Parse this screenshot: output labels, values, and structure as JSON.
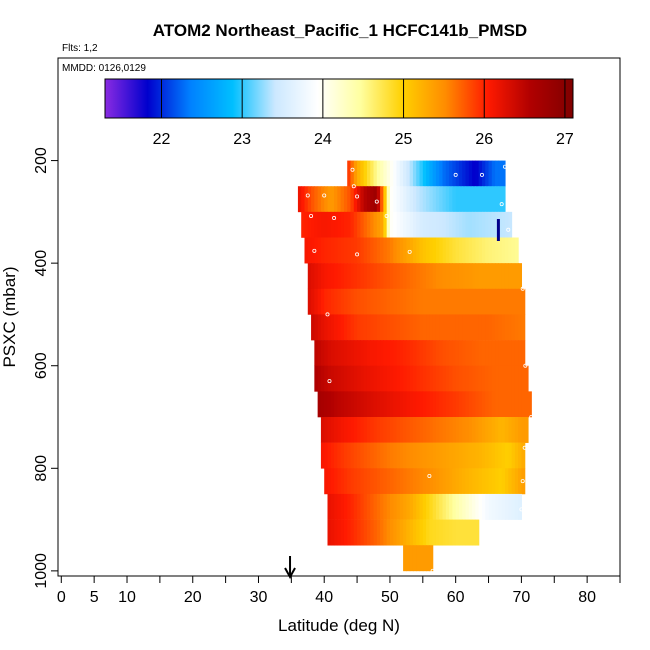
{
  "chart_data": {
    "type": "heatmap",
    "title": "ATOM2 Northeast_Pacific_1 HCFC141b_PMSD",
    "flights_note": "Flts: 1,2",
    "date_note": "MMDD: 0126,0129",
    "xlabel": "Latitude (deg N)",
    "ylabel": "PSXC (mbar)",
    "xlim": [
      -0.5,
      85
    ],
    "ylim": [
      1010,
      0
    ],
    "x_ticks": [
      0,
      5,
      10,
      20,
      30,
      40,
      50,
      60,
      70,
      80
    ],
    "x_tick_labels": [
      "0",
      "5",
      "10",
      "20",
      "30",
      "40",
      "50",
      "60",
      "70",
      "80"
    ],
    "x_minor_ticks": [
      15,
      25,
      35,
      45,
      55,
      65,
      75,
      85
    ],
    "y_ticks": [
      200,
      400,
      600,
      800,
      1000
    ],
    "y_tick_labels": [
      "200",
      "400",
      "600",
      "800",
      "1000"
    ],
    "colorbar": {
      "range": [
        21.3,
        27.1
      ],
      "ticks": [
        22,
        23,
        24,
        25,
        26,
        27
      ],
      "tick_labels": [
        "22",
        "23",
        "24",
        "25",
        "26",
        "27"
      ],
      "colors": [
        "#8a2be2",
        "#0000cd",
        "#0080ff",
        "#00bfff",
        "#cce8ff",
        "#ffffff",
        "#ffffa0",
        "#ffd000",
        "#ff8c00",
        "#ff1a00",
        "#b00000",
        "#800000"
      ]
    },
    "markers": [
      {
        "type": "arrow-down",
        "x": 34.8,
        "color": "#000000"
      },
      {
        "type": "bar-top",
        "x": 66.5,
        "color": "#00008b"
      }
    ],
    "rows": [
      {
        "p_top": 200,
        "p_bot": 250,
        "x_start": 43.5,
        "x_end": 67.5,
        "segments": [
          [
            43.5,
            26.0
          ],
          [
            45,
            25.3
          ],
          [
            48,
            24.5
          ],
          [
            52,
            23.6
          ],
          [
            58,
            22.3
          ],
          [
            63,
            21.8
          ],
          [
            66,
            22.3
          ],
          [
            67.5,
            22.3
          ]
        ]
      },
      {
        "p_top": 250,
        "p_bot": 300,
        "x_start": 36,
        "x_end": 67.5,
        "segments": [
          [
            36,
            26.2
          ],
          [
            38,
            25.8
          ],
          [
            41,
            25.4
          ],
          [
            44,
            25.8
          ],
          [
            46,
            26.5
          ],
          [
            48,
            26.8
          ],
          [
            50,
            24.0
          ],
          [
            54,
            23.4
          ],
          [
            60,
            23.0
          ],
          [
            67.5,
            23.0
          ]
        ]
      },
      {
        "p_top": 300,
        "p_bot": 350,
        "x_start": 36.5,
        "x_end": 68.5,
        "segments": [
          [
            36.5,
            26.0
          ],
          [
            40,
            26.1
          ],
          [
            44,
            26.0
          ],
          [
            47,
            25.6
          ],
          [
            49,
            25.3
          ],
          [
            50,
            24.0
          ],
          [
            55,
            23.5
          ],
          [
            62,
            23.3
          ],
          [
            68.5,
            23.4
          ]
        ]
      },
      {
        "p_top": 350,
        "p_bot": 400,
        "x_start": 37,
        "x_end": 69.5,
        "segments": [
          [
            37,
            26.1
          ],
          [
            40,
            26.0
          ],
          [
            45,
            25.9
          ],
          [
            50,
            25.6
          ],
          [
            55,
            25.1
          ],
          [
            60,
            24.8
          ],
          [
            65,
            24.6
          ],
          [
            69.5,
            24.5
          ]
        ]
      },
      {
        "p_top": 400,
        "p_bot": 450,
        "x_start": 37.5,
        "x_end": 70,
        "segments": [
          [
            37.5,
            26.3
          ],
          [
            40,
            26.1
          ],
          [
            46,
            25.9
          ],
          [
            52,
            25.7
          ],
          [
            58,
            25.5
          ],
          [
            64,
            25.4
          ],
          [
            70,
            25.4
          ]
        ]
      },
      {
        "p_top": 450,
        "p_bot": 500,
        "x_start": 37.5,
        "x_end": 70.5,
        "segments": [
          [
            37.5,
            26.3
          ],
          [
            40,
            26.0
          ],
          [
            45,
            25.8
          ],
          [
            55,
            25.6
          ],
          [
            65,
            25.6
          ],
          [
            70.5,
            25.6
          ]
        ]
      },
      {
        "p_top": 500,
        "p_bot": 550,
        "x_start": 38,
        "x_end": 70.5,
        "segments": [
          [
            38,
            26.4
          ],
          [
            40,
            26.2
          ],
          [
            45,
            25.9
          ],
          [
            55,
            25.7
          ],
          [
            65,
            25.7
          ],
          [
            70.5,
            25.6
          ]
        ]
      },
      {
        "p_top": 550,
        "p_bot": 600,
        "x_start": 38.5,
        "x_end": 70.5,
        "segments": [
          [
            38.5,
            26.5
          ],
          [
            41,
            26.3
          ],
          [
            47,
            26.1
          ],
          [
            52,
            26.0
          ],
          [
            58,
            25.8
          ],
          [
            64,
            25.7
          ],
          [
            70.5,
            25.7
          ]
        ]
      },
      {
        "p_top": 600,
        "p_bot": 650,
        "x_start": 38.5,
        "x_end": 71,
        "segments": [
          [
            38.5,
            26.6
          ],
          [
            41,
            26.4
          ],
          [
            46,
            26.2
          ],
          [
            53,
            26.0
          ],
          [
            60,
            25.8
          ],
          [
            66,
            25.7
          ],
          [
            71,
            25.7
          ]
        ]
      },
      {
        "p_top": 650,
        "p_bot": 700,
        "x_start": 39,
        "x_end": 71.5,
        "segments": [
          [
            39,
            26.7
          ],
          [
            42,
            26.5
          ],
          [
            47,
            26.3
          ],
          [
            53,
            26.1
          ],
          [
            60,
            25.9
          ],
          [
            66,
            25.7
          ],
          [
            71.5,
            25.7
          ]
        ]
      },
      {
        "p_top": 700,
        "p_bot": 750,
        "x_start": 39.5,
        "x_end": 71,
        "segments": [
          [
            39.5,
            26.3
          ],
          [
            43,
            26.1
          ],
          [
            48,
            25.9
          ],
          [
            55,
            25.7
          ],
          [
            62,
            25.5
          ],
          [
            67,
            25.2
          ],
          [
            70,
            25.4
          ],
          [
            71,
            25.4
          ]
        ]
      },
      {
        "p_top": 750,
        "p_bot": 800,
        "x_start": 39.5,
        "x_end": 70.5,
        "segments": [
          [
            39.5,
            26.1
          ],
          [
            43,
            25.9
          ],
          [
            50,
            25.6
          ],
          [
            57,
            25.4
          ],
          [
            64,
            25.2
          ],
          [
            68,
            25.0
          ],
          [
            70.5,
            25.3
          ]
        ]
      },
      {
        "p_top": 800,
        "p_bot": 850,
        "x_start": 40,
        "x_end": 70.5,
        "segments": [
          [
            40,
            26.1
          ],
          [
            44,
            25.9
          ],
          [
            50,
            25.7
          ],
          [
            56,
            25.5
          ],
          [
            62,
            25.2
          ],
          [
            67,
            25.0
          ],
          [
            70.5,
            25.4
          ]
        ]
      },
      {
        "p_top": 850,
        "p_bot": 900,
        "x_start": 40.5,
        "x_end": 70,
        "segments": [
          [
            40.5,
            26.2
          ],
          [
            44,
            26.0
          ],
          [
            49,
            25.6
          ],
          [
            53,
            25.3
          ],
          [
            57,
            24.8
          ],
          [
            61,
            24.3
          ],
          [
            65,
            23.8
          ],
          [
            70,
            23.6
          ]
        ]
      },
      {
        "p_top": 900,
        "p_bot": 950,
        "x_start": 40.5,
        "x_end": 63.5,
        "segments": [
          [
            40.5,
            26.2
          ],
          [
            44,
            26.0
          ],
          [
            48,
            25.7
          ],
          [
            52,
            25.3
          ],
          [
            56,
            24.9
          ],
          [
            60,
            24.8
          ],
          [
            63.5,
            24.8
          ]
        ]
      },
      {
        "p_top": 950,
        "p_bot": 1000,
        "x_start": 52,
        "x_end": 56.5,
        "segments": [
          [
            52,
            25.4
          ],
          [
            56.5,
            25.4
          ]
        ]
      }
    ],
    "sample_points": [
      [
        44.3,
        218
      ],
      [
        67.5,
        212
      ],
      [
        60,
        228
      ],
      [
        64,
        228
      ],
      [
        44.5,
        250
      ],
      [
        37.5,
        268
      ],
      [
        40,
        268
      ],
      [
        45,
        270
      ],
      [
        48,
        280
      ],
      [
        67,
        285
      ],
      [
        38,
        308
      ],
      [
        41.5,
        312
      ],
      [
        49.5,
        308
      ],
      [
        68,
        335
      ],
      [
        38.5,
        376
      ],
      [
        45,
        383
      ],
      [
        53,
        378
      ],
      [
        70.2,
        450
      ],
      [
        40.5,
        500
      ],
      [
        70.6,
        600
      ],
      [
        40.8,
        630
      ],
      [
        71.5,
        700
      ],
      [
        70.5,
        760
      ],
      [
        70.2,
        825
      ],
      [
        56,
        815
      ],
      [
        70,
        880
      ],
      [
        40.9,
        955
      ],
      [
        56.5,
        1000
      ]
    ]
  }
}
